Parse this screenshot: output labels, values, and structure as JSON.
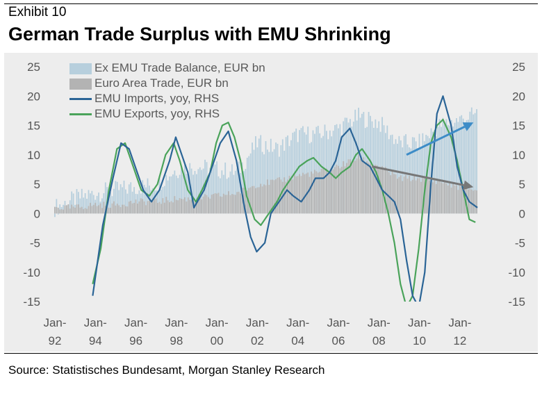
{
  "header": {
    "exhibit": "Exhibit 10",
    "title": "German Trade Surplus with EMU Shrinking"
  },
  "source": "Source: Statistisches Bundesamt, Morgan Stanley Research",
  "colors": {
    "ex_emu_bars": "#b7cfdd",
    "euro_area_bars": "#b3b3b3",
    "emu_imports": "#2a6496",
    "emu_exports": "#4aa35a",
    "arrow_up": "#3d8cc7",
    "arrow_down": "#777777",
    "plot_background": "#ededed"
  },
  "chart_data": {
    "type": "bar",
    "x_start": "Jan-92",
    "x_end": "Dec-12",
    "x_ticks": [
      {
        "line1": "Jan-",
        "line2": "92"
      },
      {
        "line1": "Jan-",
        "line2": "94"
      },
      {
        "line1": "Jan-",
        "line2": "96"
      },
      {
        "line1": "Jan-",
        "line2": "98"
      },
      {
        "line1": "Jan-",
        "line2": "00"
      },
      {
        "line1": "Jan-",
        "line2": "02"
      },
      {
        "line1": "Jan-",
        "line2": "04"
      },
      {
        "line1": "Jan-",
        "line2": "06"
      },
      {
        "line1": "Jan-",
        "line2": "08"
      },
      {
        "line1": "Jan-",
        "line2": "10"
      },
      {
        "line1": "Jan-",
        "line2": "12"
      }
    ],
    "y_left": {
      "min": -15,
      "max": 25,
      "ticks": [
        "25",
        "20",
        "15",
        "10",
        "5",
        "0",
        "-5",
        "-10",
        "-15"
      ]
    },
    "y_right": {
      "min": -15,
      "max": 25,
      "ticks": [
        "25",
        "20",
        "15",
        "10",
        "5",
        "0",
        "-5",
        "-10",
        "-15"
      ]
    },
    "legend_position": "top-left",
    "grid": false,
    "series": [
      {
        "name": "Ex EMU Trade Balance, EUR bn",
        "kind": "bar",
        "axis": "left",
        "x": [
          1992.0,
          1993.0,
          1994.0,
          1995.0,
          1996.0,
          1997.0,
          1998.0,
          1999.0,
          2000.0,
          2001.0,
          2002.0,
          2003.0,
          2004.0,
          2005.0,
          2006.0,
          2007.0,
          2008.0,
          2009.0,
          2010.0,
          2011.0,
          2012.0,
          2012.9
        ],
        "values": [
          1.0,
          2.5,
          3.5,
          4.0,
          4.5,
          5.0,
          7.5,
          8.0,
          7.5,
          7.0,
          12.0,
          11.0,
          13.5,
          13.5,
          14.5,
          16.5,
          15.5,
          12.0,
          12.0,
          15.0,
          16.0,
          17.0
        ]
      },
      {
        "name": "Euro Area Trade, EUR bn",
        "kind": "bar",
        "axis": "left",
        "x": [
          1992.0,
          1993.0,
          1994.0,
          1995.0,
          1996.0,
          1997.0,
          1998.0,
          1999.0,
          2000.0,
          2001.0,
          2002.0,
          2003.0,
          2004.0,
          2005.0,
          2006.0,
          2007.0,
          2008.0,
          2009.0,
          2010.0,
          2011.0,
          2012.0,
          2012.9
        ],
        "values": [
          1.0,
          1.0,
          1.5,
          1.5,
          2.0,
          2.0,
          2.5,
          2.5,
          3.0,
          3.5,
          5.0,
          5.5,
          6.5,
          7.0,
          8.0,
          9.5,
          8.0,
          6.0,
          6.0,
          5.5,
          4.5,
          4.0
        ]
      },
      {
        "name": "EMU Imports, yoy, RHS",
        "kind": "line",
        "axis": "right",
        "x": [
          1993.9,
          1994.4,
          1994.9,
          1995.3,
          1995.7,
          1996.4,
          1996.8,
          1997.2,
          1997.7,
          1998.0,
          1998.3,
          1998.6,
          1998.9,
          1999.4,
          1999.8,
          2000.2,
          2000.6,
          2001.0,
          2001.4,
          2001.7,
          2002.0,
          2002.4,
          2002.7,
          2003.1,
          2003.5,
          2003.8,
          2004.2,
          2004.6,
          2004.9,
          2005.3,
          2005.6,
          2005.9,
          2006.2,
          2006.6,
          2006.9,
          2007.2,
          2007.6,
          2007.9,
          2008.2,
          2008.5,
          2008.8,
          2009.1,
          2009.4,
          2009.7,
          2010.0,
          2010.3,
          2010.6,
          2010.9,
          2011.2,
          2011.6,
          2011.9,
          2012.2,
          2012.5,
          2012.9
        ],
        "values": [
          -14,
          -2,
          6,
          12,
          11,
          4,
          2,
          4,
          9,
          13,
          10,
          7,
          1,
          4,
          8,
          12,
          14,
          9,
          1,
          -4,
          -6.5,
          -5,
          0,
          2,
          4,
          3,
          2,
          4,
          6,
          6,
          7,
          9,
          13,
          14.5,
          12,
          9,
          8,
          6,
          4,
          3,
          2,
          -1,
          -8,
          -14,
          -16,
          -10,
          5,
          17,
          20,
          15,
          8,
          4,
          2,
          1
        ]
      },
      {
        "name": "EMU Exports, yoy, RHS",
        "kind": "line",
        "axis": "right",
        "x": [
          1993.9,
          1994.3,
          1994.7,
          1995.1,
          1995.5,
          1995.9,
          1996.3,
          1996.7,
          1997.1,
          1997.5,
          1997.9,
          1998.2,
          1998.6,
          1999.0,
          1999.3,
          1999.7,
          2000.0,
          2000.3,
          2000.6,
          2000.9,
          2001.2,
          2001.5,
          2001.9,
          2002.2,
          2002.6,
          2003.0,
          2003.3,
          2003.7,
          2004.1,
          2004.5,
          2004.8,
          2005.2,
          2005.6,
          2005.9,
          2006.2,
          2006.6,
          2006.9,
          2007.2,
          2007.6,
          2007.9,
          2008.2,
          2008.5,
          2008.8,
          2009.1,
          2009.4,
          2009.7,
          2010.0,
          2010.3,
          2010.6,
          2010.9,
          2011.2,
          2011.6,
          2011.9,
          2012.2,
          2012.5,
          2012.8
        ],
        "values": [
          -12,
          -6,
          4,
          11,
          12,
          8,
          4,
          3,
          5,
          10,
          12,
          9,
          4,
          2,
          4,
          7,
          12,
          15,
          15.5,
          13,
          9,
          3,
          -1,
          -2,
          0,
          2,
          4,
          6,
          8,
          9,
          9.5,
          8,
          7,
          6,
          7,
          8,
          10,
          11,
          9,
          7,
          4,
          0,
          -5,
          -12,
          -16,
          -14,
          -6,
          4,
          12,
          15,
          16,
          13,
          9,
          4,
          -1,
          -1.5
        ]
      }
    ],
    "trend_arrows": [
      {
        "label": "ex-EMU upward trend",
        "x": [
          2009.4,
          2012.7
        ],
        "values": [
          10,
          15.5
        ],
        "axis": "left"
      },
      {
        "label": "euro-area downward trend",
        "x": [
          2007.7,
          2012.7
        ],
        "values": [
          8.0,
          4.5
        ],
        "axis": "left"
      }
    ]
  }
}
